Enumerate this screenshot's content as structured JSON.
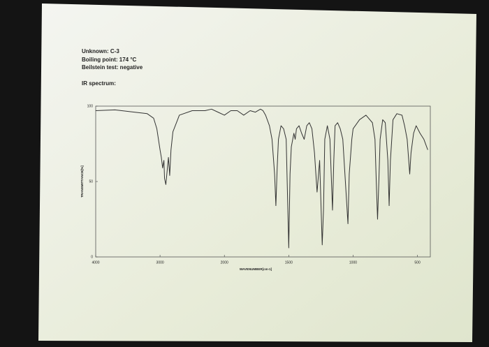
{
  "chart_data": {
    "type": "line",
    "header_lines": [
      "Unknown: C-3",
      "Boiling point: 174 °C",
      "Beilstein test: negative"
    ],
    "title": "IR spectrum:",
    "x_label": "WAVENUMBER[cm-1]",
    "y_label": "TRANSMITTANCE[%]",
    "xlim": [
      4000,
      400
    ],
    "xticks": [
      4000,
      3000,
      2000,
      1500,
      1000,
      500
    ],
    "ylim": [
      0,
      100
    ],
    "yticks": [
      0,
      50,
      100
    ],
    "series": [
      {
        "name": "IR spectrum",
        "color": "#333333",
        "x": [
          4000,
          3700,
          3400,
          3200,
          3100,
          3050,
          3000,
          2980,
          2960,
          2940,
          2930,
          2910,
          2890,
          2870,
          2850,
          2830,
          2800,
          2700,
          2500,
          2300,
          2200,
          2100,
          2000,
          1950,
          1900,
          1850,
          1800,
          1760,
          1720,
          1700,
          1680,
          1650,
          1630,
          1610,
          1600,
          1590,
          1580,
          1560,
          1540,
          1520,
          1500,
          1490,
          1480,
          1460,
          1450,
          1440,
          1420,
          1400,
          1380,
          1360,
          1340,
          1320,
          1300,
          1280,
          1260,
          1240,
          1230,
          1220,
          1200,
          1180,
          1160,
          1150,
          1140,
          1120,
          1100,
          1080,
          1060,
          1040,
          1030,
          1010,
          1000,
          950,
          900,
          850,
          830,
          820,
          810,
          800,
          790,
          770,
          750,
          730,
          720,
          710,
          690,
          660,
          620,
          600,
          580,
          560,
          550,
          530,
          510,
          480,
          450,
          420
        ],
        "values": [
          97,
          97.5,
          96,
          95,
          92,
          85,
          71,
          66,
          59,
          64,
          52,
          48,
          57,
          66,
          54,
          71,
          83,
          94,
          97,
          97,
          98,
          96,
          94,
          97,
          97,
          94,
          97,
          96,
          98,
          97,
          94,
          87,
          78,
          55,
          34,
          59,
          78,
          87,
          85,
          78,
          6,
          55,
          73,
          82,
          78,
          85,
          87,
          82,
          78,
          87,
          89,
          85,
          69,
          43,
          64,
          8,
          31,
          78,
          87,
          78,
          31,
          64,
          87,
          89,
          85,
          78,
          50,
          22,
          55,
          78,
          85,
          91,
          94,
          89,
          78,
          50,
          25,
          50,
          78,
          91,
          89,
          64,
          34,
          64,
          91,
          95,
          94,
          87,
          78,
          55,
          69,
          82,
          87,
          82,
          78,
          71
        ]
      }
    ]
  }
}
